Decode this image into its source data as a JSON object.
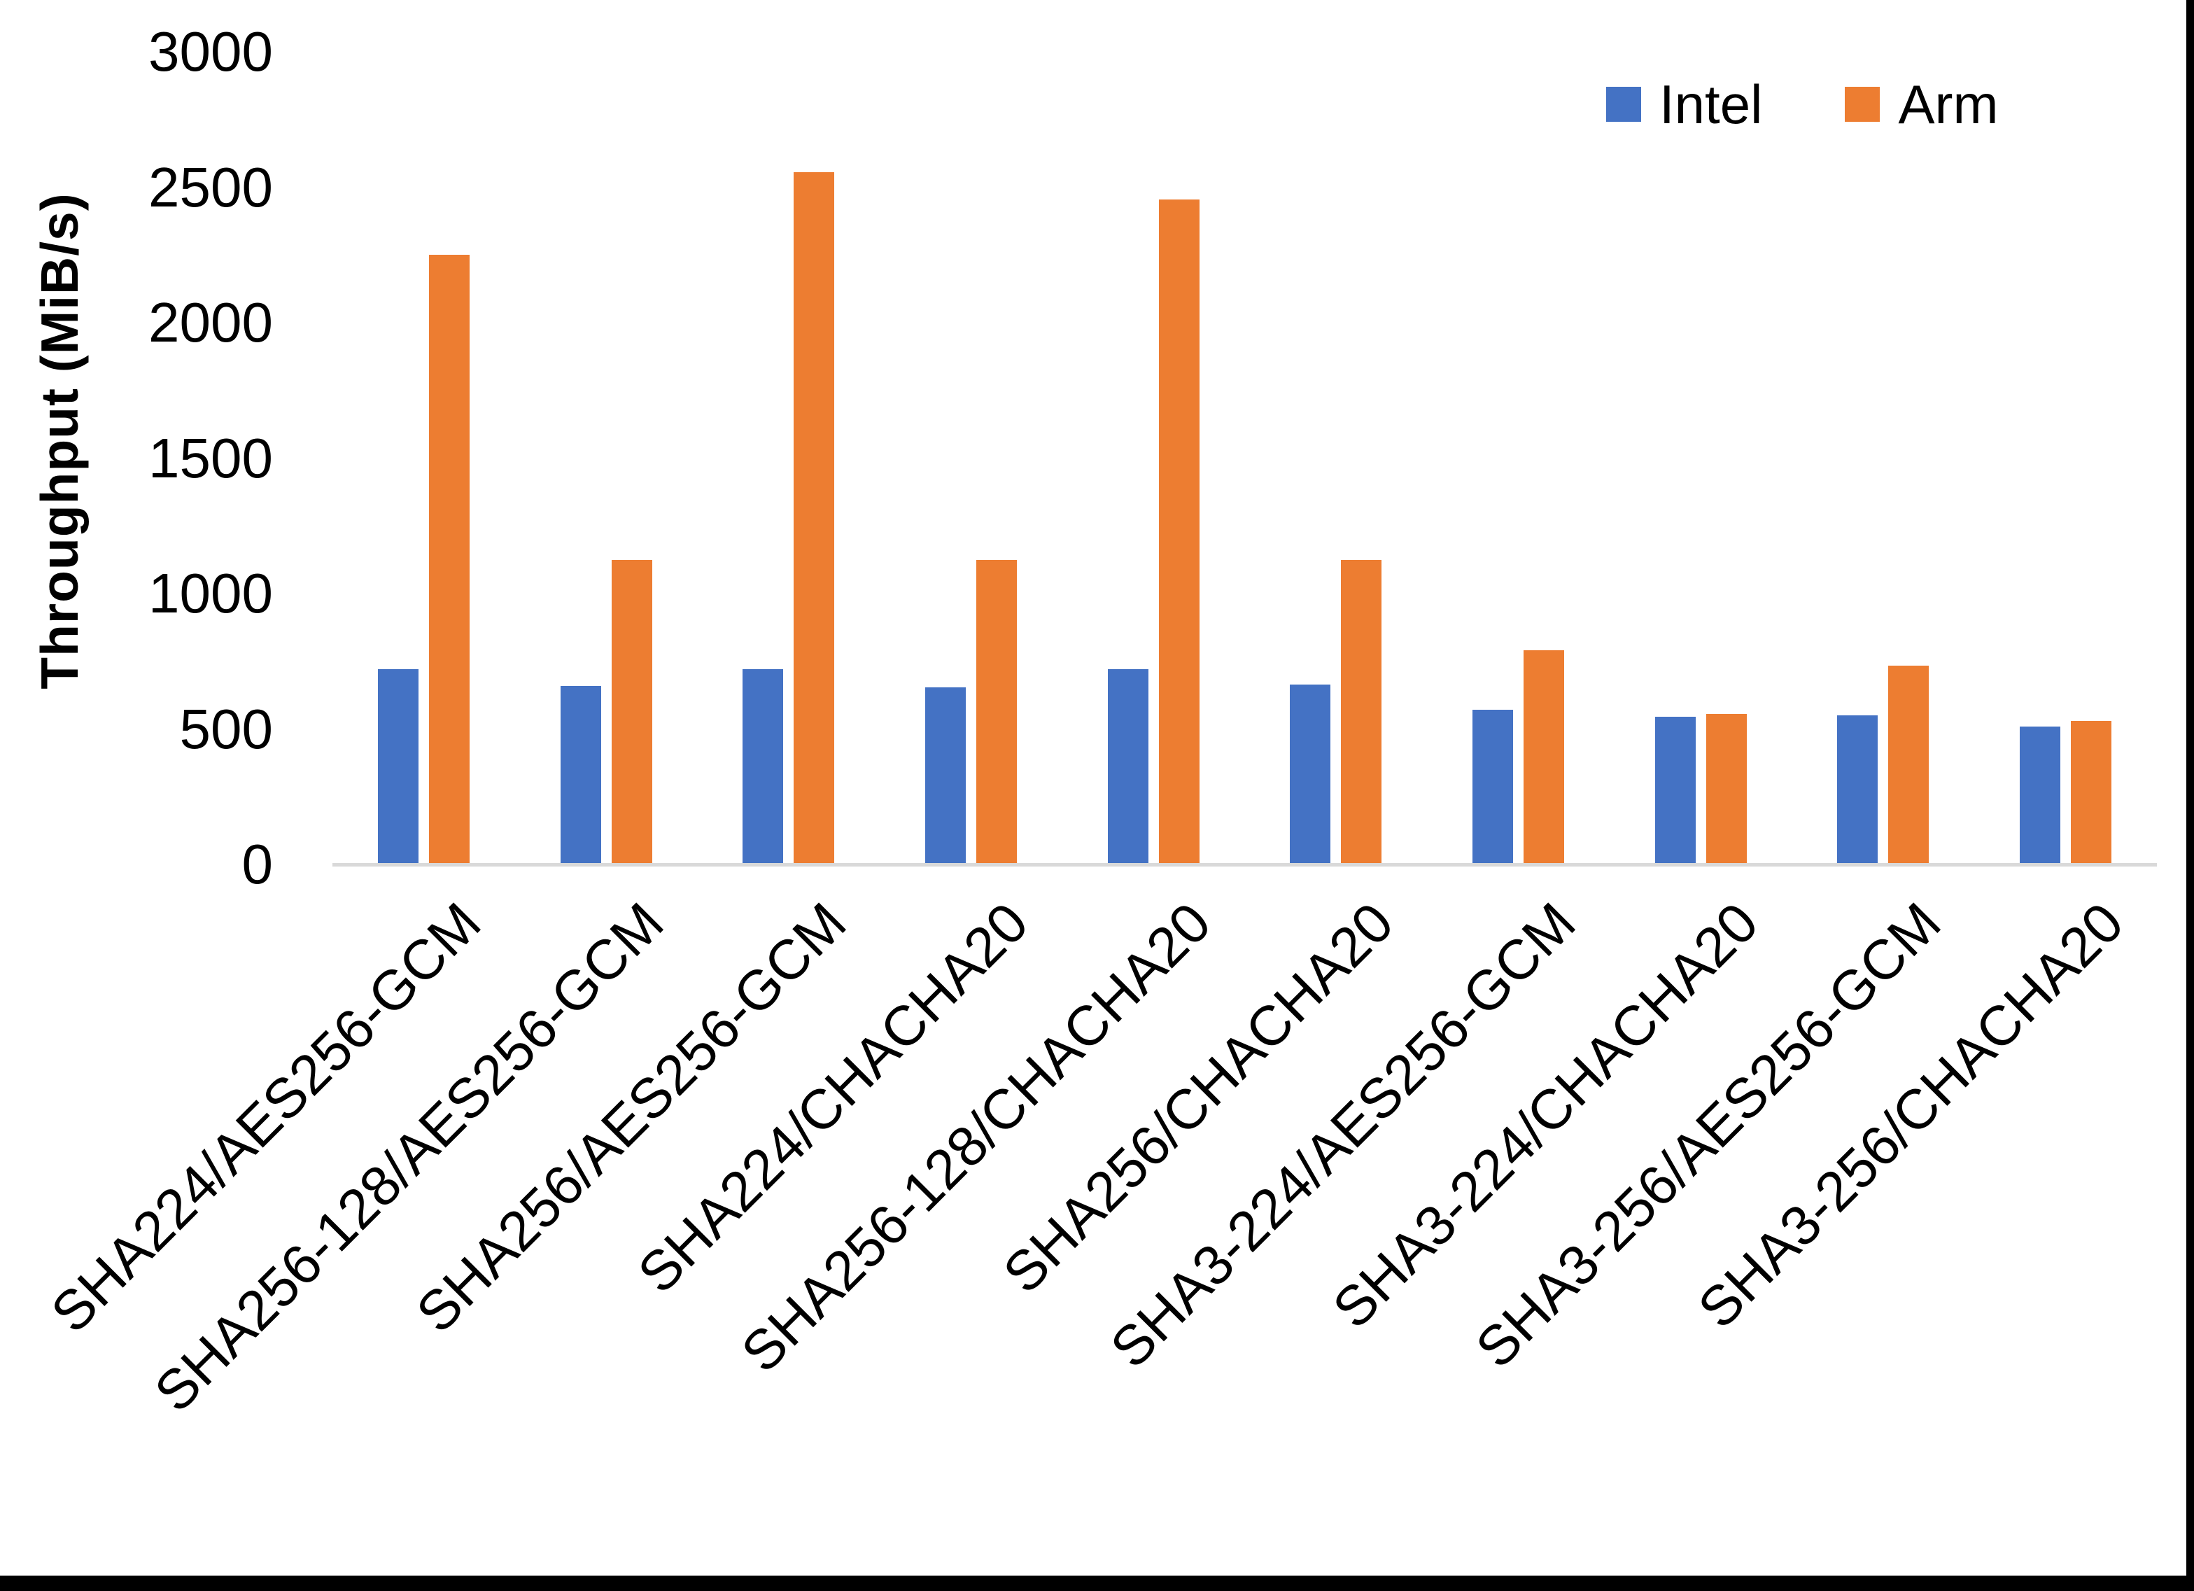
{
  "chart_data": {
    "type": "bar",
    "title": "",
    "xlabel": "",
    "ylabel": "Throughput (MiB/s)",
    "ylim": [
      0,
      3000
    ],
    "yticks": [
      0,
      500,
      1000,
      1500,
      2000,
      2500,
      3000
    ],
    "grid": false,
    "legend_position": "top-right",
    "categories": [
      "SHA224/AES256-GCM",
      "SHA256-128/AES256-GCM",
      "SHA256/AES256-GCM",
      "SHA224/CHACHA20",
      "SHA256-128/CHACHA20",
      "SHA256/CHACHA20",
      "SHA3-224/AES256-GCM",
      "SHA3-224/CHACHA20",
      "SHA3-256/AES256-GCM",
      "SHA3-256/CHACHA20"
    ],
    "series": [
      {
        "name": "Intel",
        "color": "#4472C4",
        "values": [
          720,
          660,
          720,
          655,
          720,
          665,
          570,
          545,
          550,
          510
        ]
      },
      {
        "name": "Arm",
        "color": "#ED7D31",
        "values": [
          2250,
          1125,
          2555,
          1125,
          2455,
          1125,
          790,
          555,
          735,
          530
        ]
      }
    ]
  },
  "colors": {
    "axis_line": "#D9D9D9",
    "text": "#000000",
    "background": "#FFFFFF",
    "frame_border": "#000000"
  }
}
